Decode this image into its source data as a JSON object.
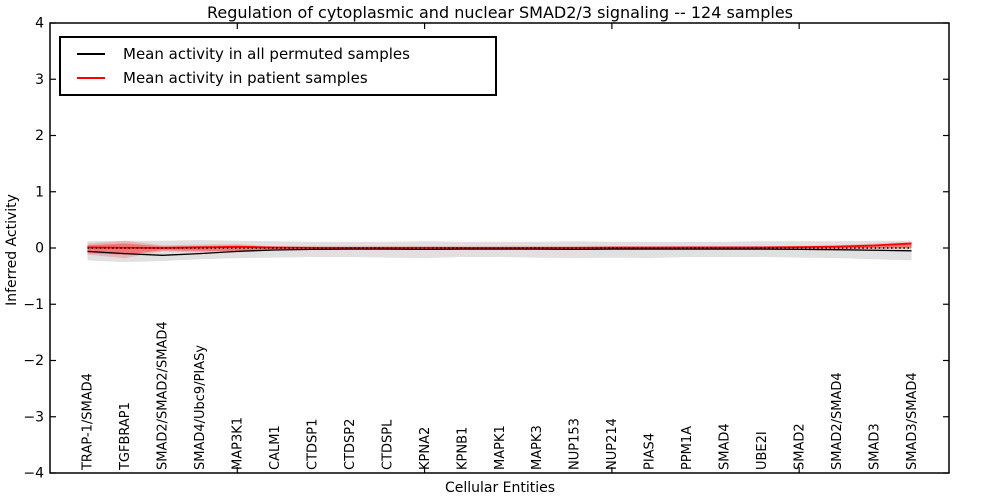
{
  "chart_data": {
    "type": "line",
    "title": "Regulation of cytoplasmic and nuclear SMAD2/3 signaling -- 124 samples",
    "xlabel": "Cellular Entities",
    "ylabel": "Inferred Activity",
    "ylim": [
      -4,
      4
    ],
    "xlim": [
      0,
      24
    ],
    "grid": false,
    "legend_position": "upper left",
    "yticks": [
      -4,
      -3,
      -2,
      -1,
      0,
      1,
      2,
      3,
      4
    ],
    "ytick_labels": [
      "−4",
      "−3",
      "−2",
      "−1",
      "0",
      "1",
      "2",
      "3",
      "4"
    ],
    "xticks": [
      0,
      5,
      10,
      15,
      20
    ],
    "categories": [
      "TRAP-1/SMAD4",
      "TGFBRAP1",
      "SMAD2/SMAD2/SMAD4",
      "SMAD4/Ubc9/PIASy",
      "MAP3K1",
      "CALM1",
      "CTDSP1",
      "CTDSP2",
      "CTDSPL",
      "KPNA2",
      "KPNB1",
      "MAPK1",
      "MAPK3",
      "NUP153",
      "NUP214",
      "PIAS4",
      "PPM1A",
      "SMAD4",
      "UBE2I",
      "SMAD2",
      "SMAD2/SMAD4",
      "SMAD3",
      "SMAD3/SMAD4"
    ],
    "series": [
      {
        "name": "Mean activity in all permuted samples",
        "color": "#000000",
        "line": "solid",
        "width": 1.3,
        "values": [
          -0.06,
          -0.1,
          -0.13,
          -0.1,
          -0.06,
          -0.035,
          -0.025,
          -0.02,
          -0.02,
          -0.025,
          -0.02,
          -0.02,
          -0.02,
          -0.025,
          -0.02,
          -0.02,
          -0.02,
          -0.02,
          -0.02,
          -0.025,
          -0.03,
          -0.04,
          -0.05
        ]
      },
      {
        "name": "Mean activity in patient samples",
        "color": "#ff0000",
        "line": "solid",
        "width": 1.8,
        "values": [
          0.01,
          0.005,
          0.0,
          0.01,
          0.02,
          0.008,
          0.005,
          0.005,
          0.005,
          0.005,
          0.005,
          0.005,
          0.005,
          0.005,
          0.008,
          0.008,
          0.01,
          0.01,
          0.01,
          0.015,
          0.025,
          0.045,
          0.08
        ]
      },
      {
        "name": "Zero reference",
        "color": "#000000",
        "line": "dotted",
        "width": 1.5,
        "values": [
          0,
          0,
          0,
          0,
          0,
          0,
          0,
          0,
          0,
          0,
          0,
          0,
          0,
          0,
          0,
          0,
          0,
          0,
          0,
          0,
          0,
          0,
          0
        ]
      }
    ],
    "bands": [
      {
        "name": "permuted-samples-range",
        "color": "#bbbbbb",
        "opacity": 0.45,
        "upper": [
          0.12,
          0.13,
          0.13,
          0.14,
          0.13,
          0.12,
          0.11,
          0.11,
          0.11,
          0.12,
          0.11,
          0.11,
          0.11,
          0.12,
          0.11,
          0.11,
          0.11,
          0.11,
          0.12,
          0.12,
          0.12,
          0.13,
          0.13
        ],
        "lower": [
          -0.22,
          -0.25,
          -0.23,
          -0.2,
          -0.18,
          -0.17,
          -0.16,
          -0.16,
          -0.17,
          -0.18,
          -0.16,
          -0.16,
          -0.17,
          -0.18,
          -0.17,
          -0.18,
          -0.16,
          -0.16,
          -0.16,
          -0.17,
          -0.18,
          -0.2,
          -0.22
        ]
      },
      {
        "name": "patient-samples-range-outer",
        "color": "#ff0000",
        "opacity": 0.18,
        "upper": [
          0.08,
          0.13,
          0.05,
          0.06,
          0.07,
          0.03,
          0.025,
          0.02,
          0.025,
          0.025,
          0.02,
          0.02,
          0.025,
          0.025,
          0.025,
          0.025,
          0.025,
          0.025,
          0.03,
          0.035,
          0.05,
          0.08,
          0.11
        ],
        "lower": [
          -0.12,
          -0.18,
          -0.06,
          -0.08,
          -0.08,
          -0.03,
          -0.025,
          -0.02,
          -0.025,
          -0.025,
          -0.02,
          -0.02,
          -0.025,
          -0.025,
          -0.025,
          -0.025,
          -0.02,
          -0.02,
          -0.02,
          -0.02,
          -0.02,
          -0.015,
          -0.01
        ]
      },
      {
        "name": "patient-samples-range-inner",
        "color": "#ff0000",
        "opacity": 0.35,
        "upper": [
          0.05,
          0.08,
          0.03,
          0.035,
          0.045,
          0.02,
          0.015,
          0.015,
          0.015,
          0.015,
          0.015,
          0.015,
          0.015,
          0.015,
          0.015,
          0.015,
          0.015,
          0.015,
          0.02,
          0.025,
          0.035,
          0.055,
          0.09
        ],
        "lower": [
          -0.09,
          -0.12,
          -0.04,
          -0.05,
          -0.055,
          -0.02,
          -0.015,
          -0.015,
          -0.015,
          -0.015,
          -0.015,
          -0.015,
          -0.015,
          -0.015,
          -0.015,
          -0.015,
          -0.015,
          -0.015,
          -0.015,
          -0.012,
          -0.01,
          -0.005,
          0.0
        ]
      }
    ]
  }
}
